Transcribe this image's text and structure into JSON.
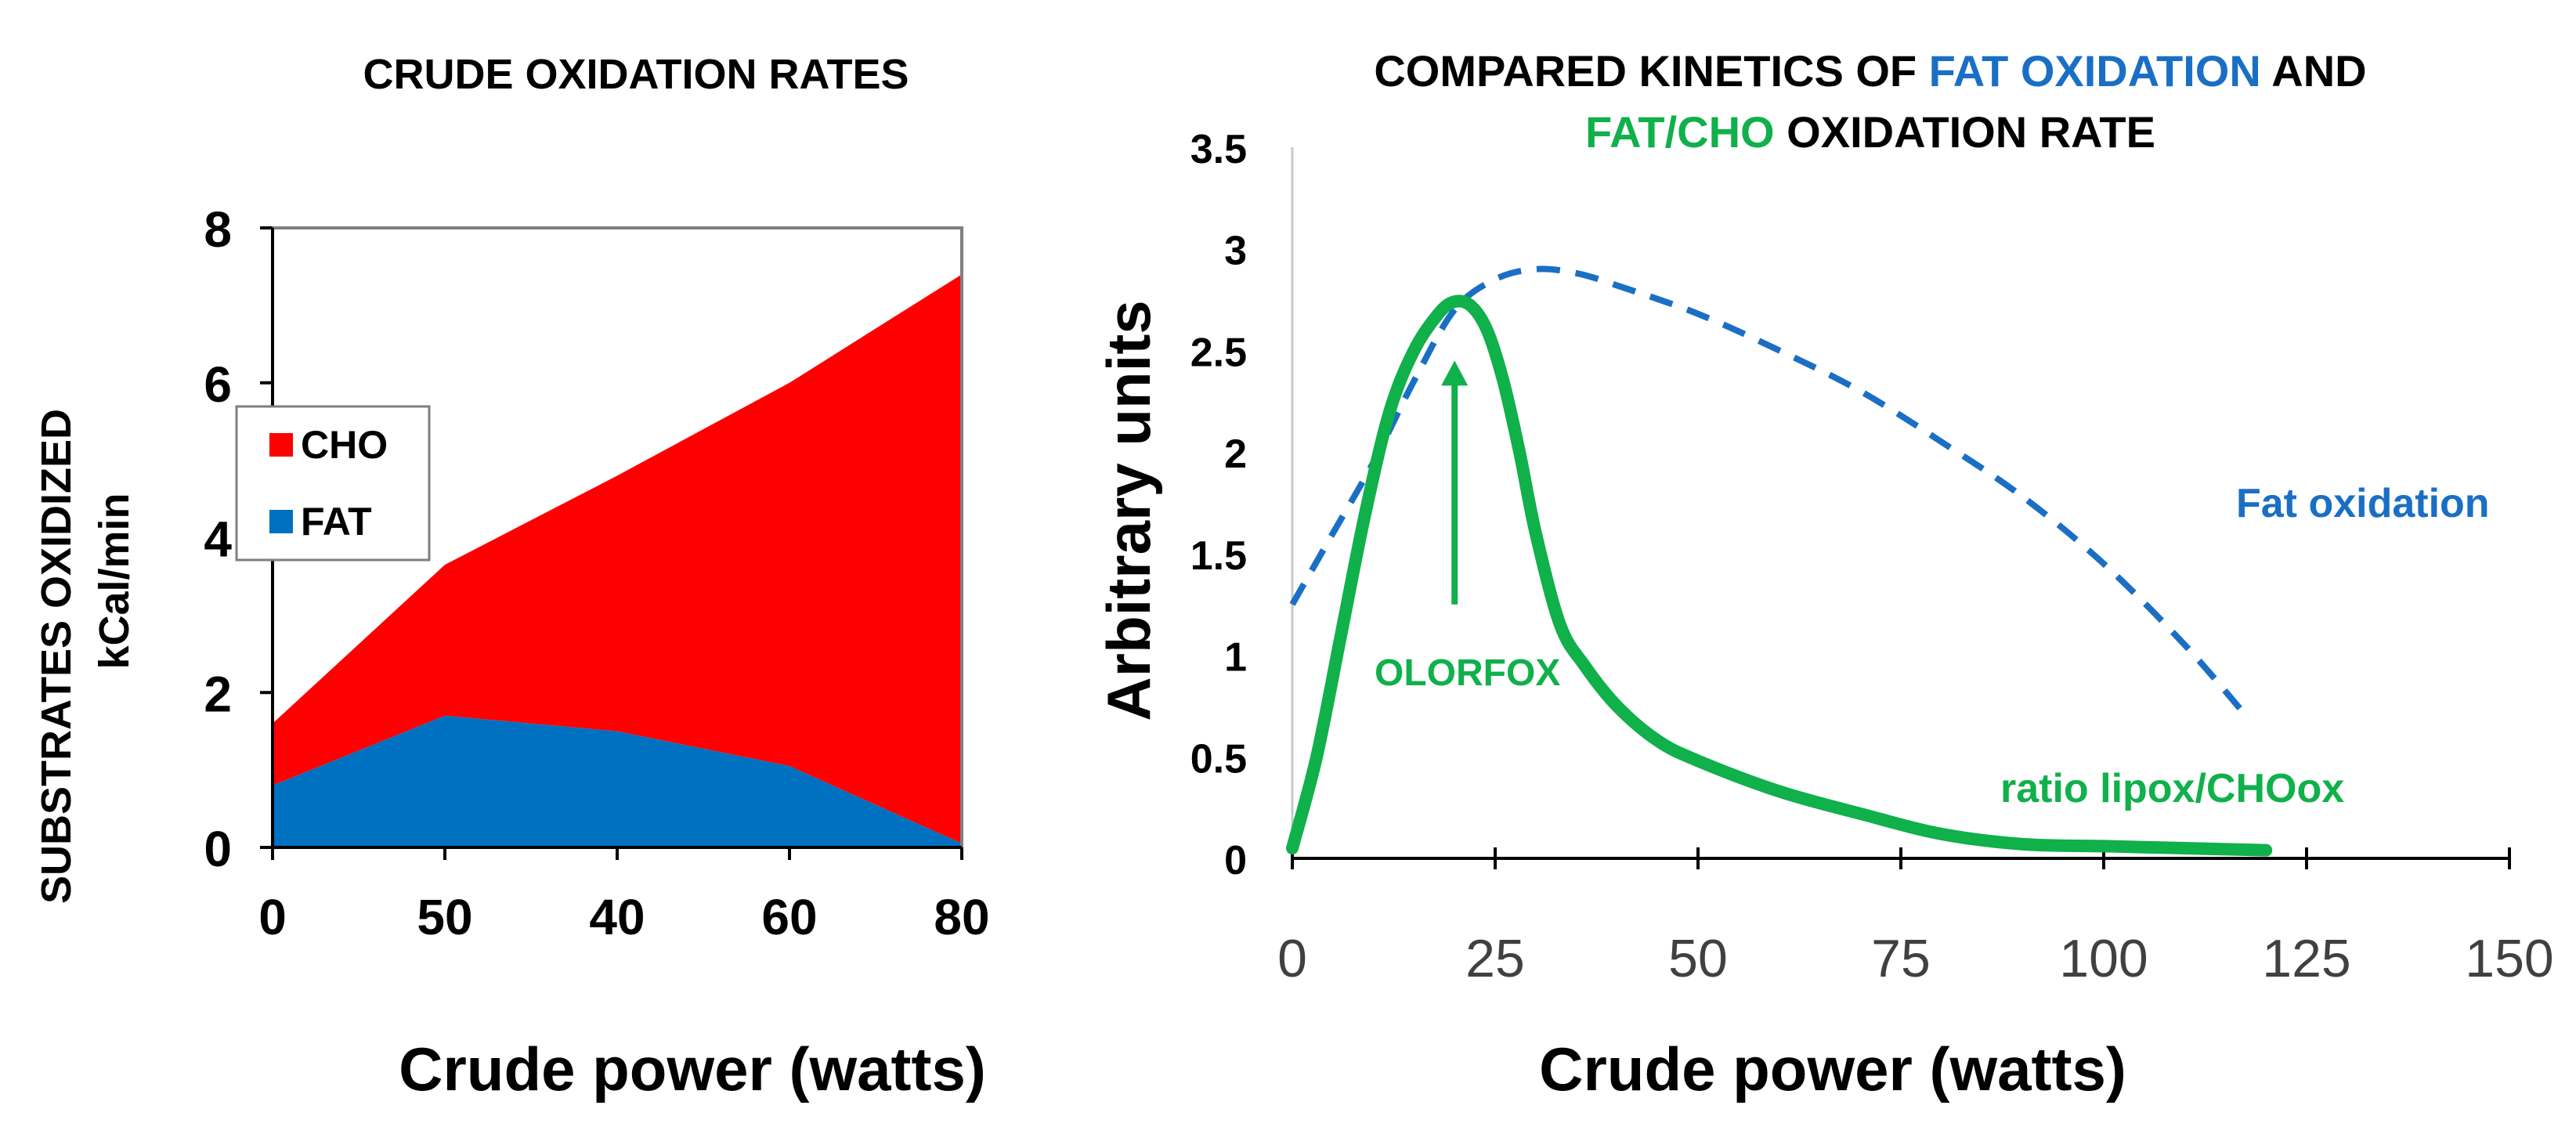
{
  "colors": {
    "cho": "#ff0000",
    "fat": "#0070c0",
    "fat_line": "#1a6fc4",
    "ratio": "#10b04a",
    "axis": "#000000",
    "frame": "#808080"
  },
  "chart_data": [
    {
      "type": "area",
      "stacked": true,
      "title": "CRUDE OXIDATION RATES",
      "xlabel": "Crude power (watts)",
      "ylabel_line1": "SUBSTRATES OXIDIZED",
      "ylabel_line2": "kCal/min",
      "categories": [
        "0",
        "50",
        "40",
        "60",
        "80"
      ],
      "series": [
        {
          "name": "FAT",
          "values": [
            0.8,
            1.7,
            1.5,
            1.05,
            0.05
          ]
        },
        {
          "name": "CHO",
          "values": [
            0.8,
            1.95,
            3.3,
            4.95,
            7.35
          ]
        }
      ],
      "ylim": [
        0,
        8
      ],
      "yticks": [
        "0",
        "2",
        "4",
        "6",
        "8"
      ],
      "legend": {
        "position": "left",
        "items": [
          "CHO",
          "FAT"
        ]
      }
    },
    {
      "type": "line",
      "title_parts": [
        "COMPARED KINETICS OF ",
        "FAT OXIDATION",
        " AND",
        "FAT/CHO",
        " OXIDATION RATE"
      ],
      "xlabel": "Crude power (watts)",
      "ylabel": "Arbitrary units",
      "xlim": [
        0,
        150
      ],
      "ylim": [
        0,
        3.5
      ],
      "xticks": [
        "0",
        "25",
        "50",
        "75",
        "100",
        "125",
        "150"
      ],
      "yticks": [
        "0",
        "0.5",
        "1",
        "1.5",
        "2",
        "2.5",
        "3",
        "3.5"
      ],
      "series": [
        {
          "name": "Fat oxidation",
          "style": "dashed",
          "x": [
            0,
            5,
            10,
            15,
            20,
            25,
            30,
            35,
            40,
            50,
            60,
            70,
            80,
            90,
            100,
            110,
            118
          ],
          "y": [
            1.25,
            1.6,
            1.95,
            2.35,
            2.7,
            2.85,
            2.9,
            2.88,
            2.82,
            2.68,
            2.5,
            2.3,
            2.05,
            1.78,
            1.45,
            1.05,
            0.68
          ]
        },
        {
          "name": "ratio lipox/CHOox",
          "style": "solid",
          "x": [
            0,
            3,
            6,
            9,
            12,
            15,
            18,
            20,
            22,
            24,
            26,
            28,
            30,
            33,
            36,
            40,
            45,
            50,
            60,
            70,
            80,
            90,
            100,
            110,
            120
          ],
          "y": [
            0.05,
            0.5,
            1.1,
            1.7,
            2.2,
            2.5,
            2.68,
            2.74,
            2.72,
            2.6,
            2.35,
            2.0,
            1.6,
            1.15,
            0.95,
            0.75,
            0.58,
            0.48,
            0.33,
            0.22,
            0.12,
            0.07,
            0.06,
            0.05,
            0.04
          ]
        }
      ],
      "annotations": {
        "fat_label": "Fat oxidation",
        "ratio_label": "ratio lipox/CHOox",
        "olorfox_label": "OLORFOX",
        "olorfox_x": 20,
        "olorfox_arrow_from_y": 1.25,
        "olorfox_arrow_to_y": 2.45
      }
    }
  ]
}
